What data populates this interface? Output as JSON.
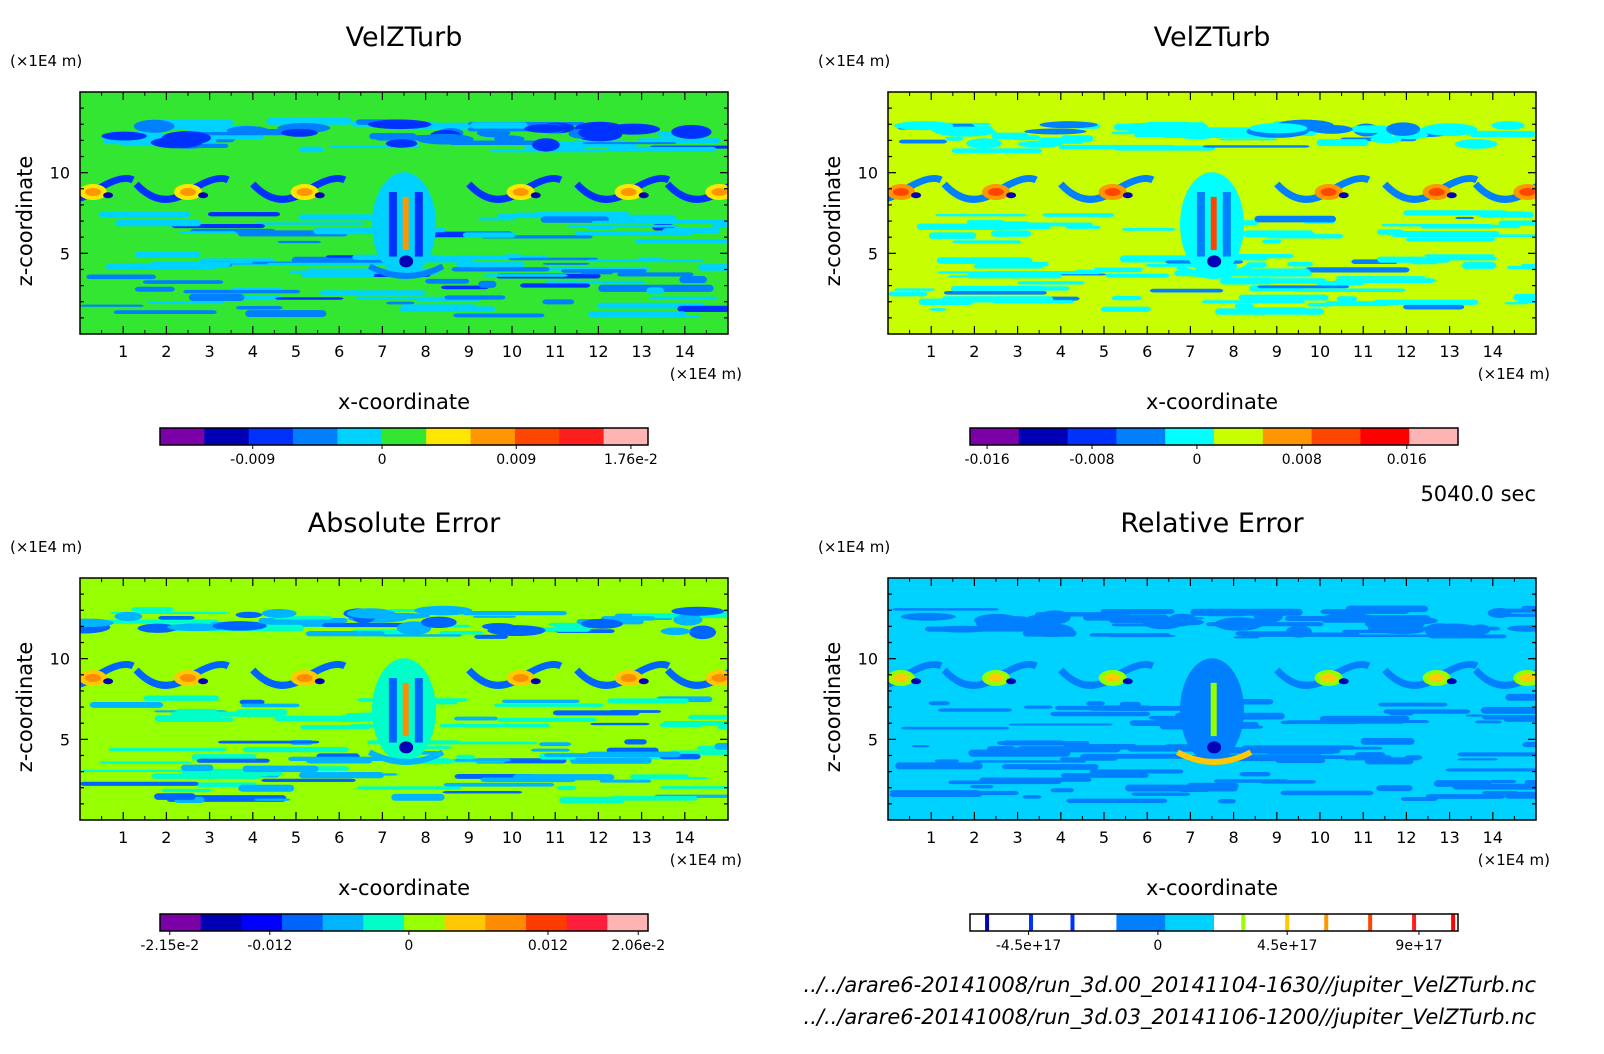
{
  "time_label": "5040.0 sec",
  "files": [
    "../../arare6-20141008/run_3d.00_20141104-1630//jupiter_VelZTurb.nc",
    "../../arare6-20141008/run_3d.03_20141106-1200//jupiter_VelZTurb.nc"
  ],
  "chart_data": [
    {
      "type": "heatmap",
      "title": "VelZTurb",
      "xlabel": "x-coordinate",
      "ylabel": "z-coordinate",
      "x_unit": "(×1E4 m)",
      "y_unit": "(×1E4 m)",
      "xlim": [
        0,
        15
      ],
      "ylim": [
        0,
        15
      ],
      "x_ticks": [
        "1",
        "2",
        "3",
        "4",
        "5",
        "6",
        "7",
        "8",
        "9",
        "10",
        "11",
        "12",
        "13",
        "14"
      ],
      "y_ticks": [
        "5",
        "10"
      ],
      "colorbar": {
        "colors": [
          "#7b00a8",
          "#0000b4",
          "#0032ff",
          "#0080ff",
          "#00d2ff",
          "#32e632",
          "#ffe600",
          "#ff9600",
          "#ff4600",
          "#ff1e1e",
          "#ffb4b4"
        ],
        "labels": [
          "-0.009",
          "0",
          "0.009",
          "1.76e-2"
        ]
      }
    },
    {
      "type": "heatmap",
      "title": "VelZTurb",
      "xlabel": "x-coordinate",
      "ylabel": "z-coordinate",
      "x_unit": "(×1E4 m)",
      "y_unit": "(×1E4 m)",
      "xlim": [
        0,
        15
      ],
      "ylim": [
        0,
        15
      ],
      "x_ticks": [
        "1",
        "2",
        "3",
        "4",
        "5",
        "6",
        "7",
        "8",
        "9",
        "10",
        "11",
        "12",
        "13",
        "14"
      ],
      "y_ticks": [
        "5",
        "10"
      ],
      "colorbar": {
        "colors": [
          "#7b00a8",
          "#0000b4",
          "#0032ff",
          "#0080ff",
          "#00ffff",
          "#c8ff00",
          "#ff9600",
          "#ff4600",
          "#ff0000",
          "#ffb4b4"
        ],
        "labels": [
          "-0.016",
          "-0.008",
          "0",
          "0.008",
          "0.016"
        ]
      }
    },
    {
      "type": "heatmap",
      "title": "Absolute Error",
      "xlabel": "x-coordinate",
      "ylabel": "z-coordinate",
      "x_unit": "(×1E4 m)",
      "y_unit": "(×1E4 m)",
      "xlim": [
        0,
        15
      ],
      "ylim": [
        0,
        15
      ],
      "x_ticks": [
        "1",
        "2",
        "3",
        "4",
        "5",
        "6",
        "7",
        "8",
        "9",
        "10",
        "11",
        "12",
        "13",
        "14"
      ],
      "y_ticks": [
        "5",
        "10"
      ],
      "colorbar": {
        "colors": [
          "#7b00a8",
          "#0000b4",
          "#0000ff",
          "#0064ff",
          "#00b4ff",
          "#00ffc8",
          "#96ff00",
          "#ffc800",
          "#ff8c00",
          "#ff3c00",
          "#ff1e3c",
          "#ffb4b4"
        ],
        "labels": [
          "-2.15e-2",
          "-0.012",
          "0",
          "0.012",
          "2.06e-2"
        ]
      }
    },
    {
      "type": "heatmap",
      "title": "Relative Error",
      "xlabel": "x-coordinate",
      "ylabel": "z-coordinate",
      "x_unit": "(×1E4 m)",
      "y_unit": "(×1E4 m)",
      "xlim": [
        0,
        15
      ],
      "ylim": [
        0,
        15
      ],
      "x_ticks": [
        "1",
        "2",
        "3",
        "4",
        "5",
        "6",
        "7",
        "8",
        "9",
        "10",
        "11",
        "12",
        "13",
        "14"
      ],
      "y_ticks": [
        "5",
        "10"
      ],
      "colorbar": {
        "colors": [
          "#ffffff",
          "#ffffff",
          "#ffffff",
          "#0080ff",
          "#00d2ff",
          "#ffffff",
          "#ffffff",
          "#ffffff",
          "#ffffff",
          "#ffffff"
        ],
        "labels": [
          "-4.5e+17",
          "0",
          "4.5e+17",
          "9e+17"
        ]
      }
    }
  ]
}
